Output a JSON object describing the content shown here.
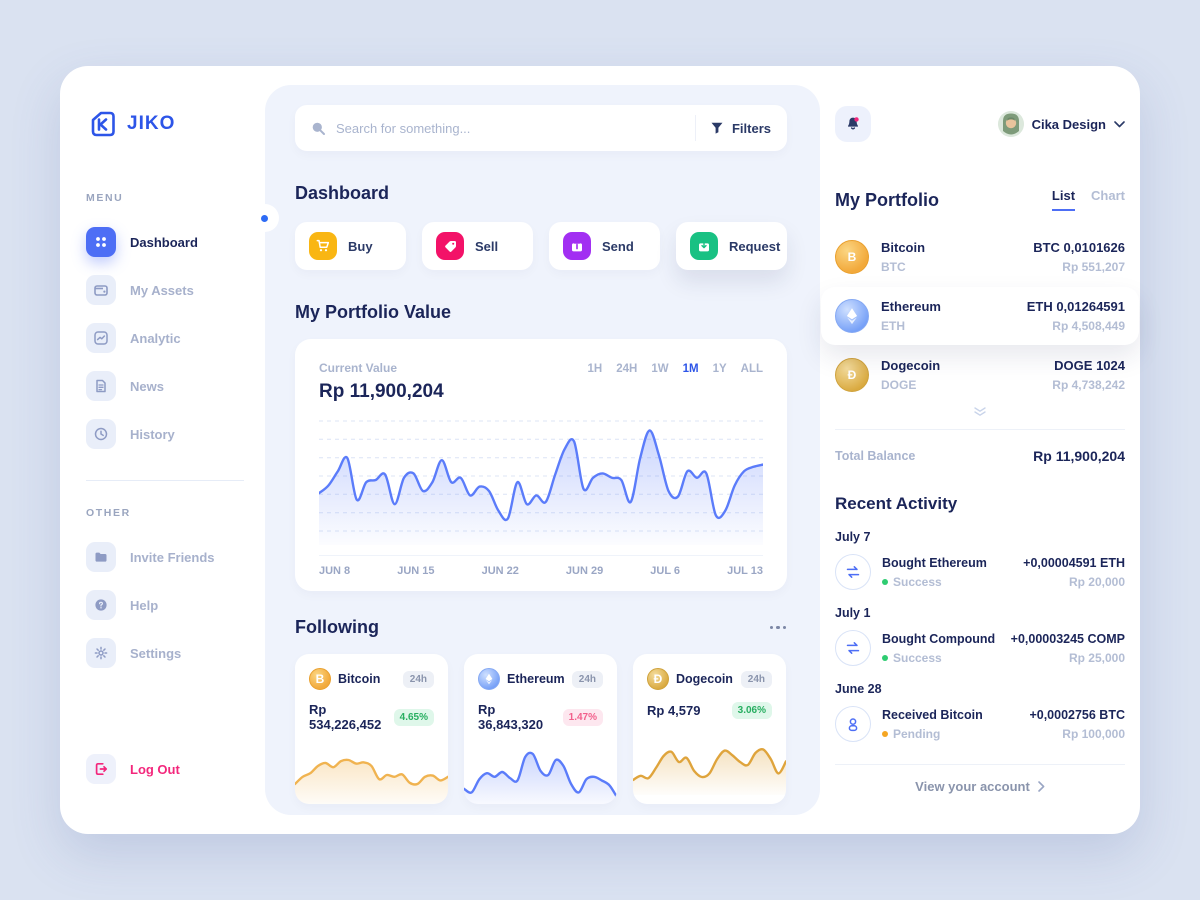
{
  "brand": {
    "name": "JIKO"
  },
  "colors": {
    "primary": "#2D55E8",
    "primary_soft": "#4D6EF5",
    "chart_line": "#5B7CFA",
    "positive": "#27AE60",
    "negative": "#F2608C",
    "pending": "#F5A623",
    "buy": "#F9B613",
    "sell": "#F31268",
    "send": "#A22FF2",
    "request": "#19C183",
    "page_bg": "#DAE2F1",
    "panel_bg": "#EFF3FC"
  },
  "icons": {
    "bitcoin_glyph": "B",
    "dogecoin_glyph": "Ð"
  },
  "sidebar": {
    "menu_label": "MENU",
    "other_label": "OTHER",
    "items": [
      {
        "label": "Dashboard",
        "icon": "grid-icon",
        "active": true
      },
      {
        "label": "My Assets",
        "icon": "wallet-icon",
        "active": false
      },
      {
        "label": "Analytic",
        "icon": "chart-icon",
        "active": false
      },
      {
        "label": "News",
        "icon": "document-icon",
        "active": false
      },
      {
        "label": "History",
        "icon": "clock-icon",
        "active": false
      },
      {
        "label": "Invite Friends",
        "icon": "folder-icon",
        "active": false
      },
      {
        "label": "Help",
        "icon": "question-icon",
        "active": false
      },
      {
        "label": "Settings",
        "icon": "gear-icon",
        "active": false
      }
    ],
    "logout_label": "Log Out"
  },
  "search": {
    "placeholder": "Search for something...",
    "filters_label": "Filters"
  },
  "dashboard": {
    "title": "Dashboard",
    "actions": [
      {
        "label": "Buy"
      },
      {
        "label": "Sell"
      },
      {
        "label": "Send"
      },
      {
        "label": "Request"
      }
    ],
    "portfolio_section_title": "My Portfolio Value",
    "value_card": {
      "current_value_label": "Current Value",
      "current_value": "Rp 11,900,204",
      "ranges": [
        "1H",
        "24H",
        "1W",
        "1M",
        "1Y",
        "ALL"
      ],
      "active_range": "1M",
      "x_labels": [
        "JUN 8",
        "JUN 15",
        "JUN 22",
        "JUN 29",
        "JUL 6",
        "JUL 13"
      ]
    },
    "following": {
      "title": "Following",
      "cards": [
        {
          "name": "Bitcoin",
          "period": "24h",
          "value": "Rp 534,226,452",
          "change": "4.65%",
          "direction": "up"
        },
        {
          "name": "Ethereum",
          "period": "24h",
          "value": "Rp 36,843,320",
          "change": "1.47%",
          "direction": "down"
        },
        {
          "name": "Dogecoin",
          "period": "24h",
          "value": "Rp 4,579",
          "change": "3.06%",
          "direction": "up"
        }
      ]
    }
  },
  "topbar": {
    "user_name": "Cika Design"
  },
  "portfolio_panel": {
    "title": "My Portfolio",
    "tabs": [
      {
        "label": "List"
      },
      {
        "label": "Chart"
      }
    ],
    "active_tab": "List",
    "assets": [
      {
        "name": "Bitcoin",
        "symbol": "BTC",
        "amount": "BTC 0,0101626",
        "value": "Rp 551,207",
        "highlighted": false
      },
      {
        "name": "Ethereum",
        "symbol": "ETH",
        "amount": "ETH 0,01264591",
        "value": "Rp 4,508,449",
        "highlighted": true
      },
      {
        "name": "Dogecoin",
        "symbol": "DOGE",
        "amount": "DOGE 1024",
        "value": "Rp 4,738,242",
        "highlighted": false
      }
    ],
    "total_balance_label": "Total Balance",
    "total_balance": "Rp 11,900,204"
  },
  "activity": {
    "title": "Recent Activity",
    "groups": [
      {
        "date": "July 7",
        "title": "Bought Ethereum",
        "status": "Success",
        "amount": "+0,00004591 ETH",
        "value": "Rp 20,000",
        "icon": "exchange-icon"
      },
      {
        "date": "July 1",
        "title": "Bought Compound",
        "status": "Success",
        "amount": "+0,00003245 COMP",
        "value": "Rp 25,000",
        "icon": "exchange-icon"
      },
      {
        "date": "June 28",
        "title": "Received Bitcoin",
        "status": "Pending",
        "amount": "+0,0002756 BTC",
        "value": "Rp 100,000",
        "icon": "person-icon"
      }
    ],
    "footer_label": "View your account"
  },
  "chart_data": [
    {
      "id": "main-portfolio",
      "type": "area",
      "title": "My Portfolio Value",
      "current_value": "Rp 11,900,204",
      "timeframe": "1M",
      "x_labels": [
        "JUN 8",
        "JUN 15",
        "JUN 22",
        "JUN 29",
        "JUL 6",
        "JUL 13"
      ],
      "ylabel": "",
      "ylim": [
        0,
        100
      ],
      "grid": true,
      "legend": false,
      "line_color": "#5B7CFA",
      "values": [
        38,
        45,
        58,
        70,
        32,
        48,
        50,
        55,
        28,
        52,
        56,
        40,
        48,
        68,
        48,
        52,
        36,
        44,
        40,
        22,
        15,
        48,
        28,
        36,
        30,
        55,
        78,
        85,
        42,
        52,
        56,
        52,
        50,
        30,
        70,
        95,
        72,
        40,
        35,
        58,
        52,
        56,
        18,
        22,
        45,
        58,
        62,
        64
      ]
    },
    {
      "id": "spark-bitcoin",
      "type": "area",
      "title": "Bitcoin 24h trend",
      "line_color": "#F0B350",
      "grid": false,
      "values": [
        40,
        52,
        58,
        70,
        75,
        68,
        78,
        80,
        74,
        76,
        70,
        48,
        55,
        52,
        56,
        42,
        40,
        52,
        54,
        46,
        52
      ]
    },
    {
      "id": "spark-ethereum",
      "type": "area",
      "title": "Ethereum 24h trend",
      "line_color": "#5B7CFA",
      "grid": false,
      "values": [
        32,
        26,
        48,
        58,
        52,
        60,
        50,
        46,
        85,
        90,
        62,
        55,
        80,
        70,
        40,
        26,
        48,
        52,
        46,
        38,
        18
      ]
    },
    {
      "id": "spark-dogecoin",
      "type": "area",
      "title": "Dogecoin 24h trend",
      "line_color": "#DFA43C",
      "grid": false,
      "values": [
        25,
        32,
        28,
        45,
        65,
        72,
        55,
        62,
        40,
        30,
        36,
        60,
        74,
        66,
        55,
        50,
        70,
        76,
        60,
        36,
        56
      ]
    }
  ]
}
